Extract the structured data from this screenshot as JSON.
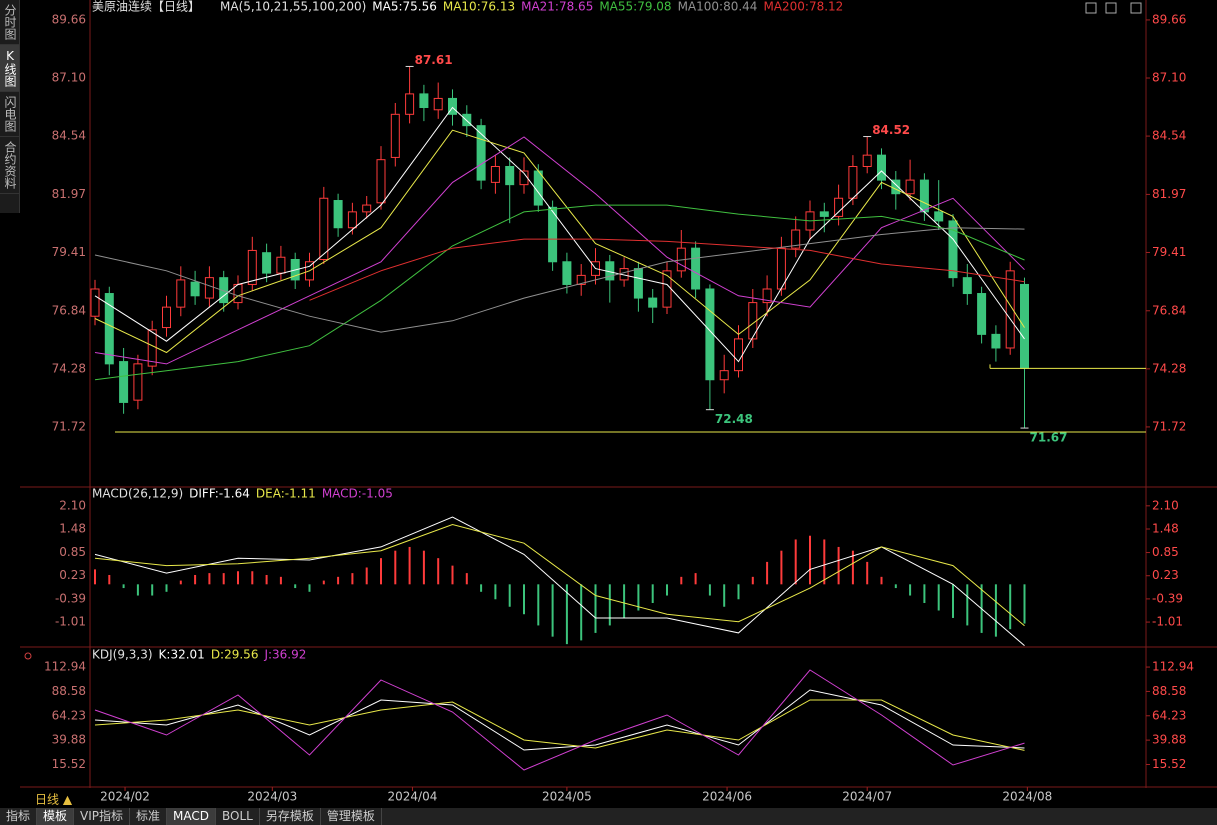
{
  "sidebar": [
    "分时图",
    "K线图",
    "闪电图",
    "合约资料"
  ],
  "sidebar_active": 1,
  "period": "日线 ▲",
  "bottom_tabs": [
    "指标",
    "模板",
    "VIP指标",
    "标准",
    "MACD",
    "BOLL",
    "另存模板",
    "管理模板"
  ],
  "chart_data": [
    {
      "type": "candlestick",
      "title": "美原油连续【日线】",
      "indicator": "MA(5,10,21,55,100,200)",
      "up_color": "#ff3b3b",
      "down_color": "#3cc47c",
      "ohlc": [
        [
          76.6,
          78.2,
          76.2,
          77.8
        ],
        [
          77.6,
          77.9,
          74.0,
          74.5
        ],
        [
          74.6,
          75.2,
          72.3,
          72.8
        ],
        [
          72.9,
          74.9,
          72.5,
          74.5
        ],
        [
          74.4,
          76.4,
          74.0,
          76.0
        ],
        [
          76.1,
          77.5,
          75.7,
          77.0
        ],
        [
          77.0,
          78.8,
          76.6,
          78.2
        ],
        [
          78.1,
          78.6,
          77.1,
          77.5
        ],
        [
          77.4,
          78.8,
          77.0,
          78.3
        ],
        [
          78.3,
          78.6,
          76.8,
          77.2
        ],
        [
          77.2,
          78.4,
          76.9,
          78.0
        ],
        [
          78.0,
          80.1,
          77.7,
          79.5
        ],
        [
          79.4,
          79.8,
          78.1,
          78.5
        ],
        [
          78.5,
          79.7,
          78.2,
          79.2
        ],
        [
          79.1,
          79.4,
          77.8,
          78.2
        ],
        [
          78.2,
          79.4,
          77.9,
          79.0
        ],
        [
          79.1,
          82.3,
          78.9,
          81.8
        ],
        [
          81.7,
          82.0,
          80.1,
          80.5
        ],
        [
          80.5,
          81.6,
          80.2,
          81.2
        ],
        [
          81.2,
          81.9,
          80.9,
          81.5
        ],
        [
          81.6,
          84.1,
          81.3,
          83.5
        ],
        [
          83.6,
          86.0,
          83.2,
          85.5
        ],
        [
          85.5,
          87.61,
          85.1,
          86.4
        ],
        [
          86.4,
          86.8,
          85.2,
          85.8
        ],
        [
          85.7,
          86.9,
          85.3,
          86.2
        ],
        [
          86.2,
          86.6,
          85.0,
          85.5
        ],
        [
          85.5,
          85.9,
          84.5,
          85.0
        ],
        [
          85.0,
          85.3,
          82.2,
          82.6
        ],
        [
          82.5,
          83.7,
          82.0,
          83.2
        ],
        [
          83.2,
          83.6,
          80.7,
          82.4
        ],
        [
          82.4,
          83.6,
          82.0,
          83.0
        ],
        [
          83.0,
          83.3,
          81.2,
          81.5
        ],
        [
          81.4,
          81.7,
          78.6,
          79.0
        ],
        [
          79.0,
          79.4,
          77.6,
          78.0
        ],
        [
          78.0,
          78.9,
          77.5,
          78.4
        ],
        [
          78.4,
          79.6,
          78.0,
          79.0
        ],
        [
          79.0,
          79.3,
          77.2,
          78.2
        ],
        [
          78.2,
          79.2,
          77.9,
          78.7
        ],
        [
          78.7,
          79.0,
          76.8,
          77.4
        ],
        [
          77.4,
          77.8,
          76.3,
          77.0
        ],
        [
          77.0,
          79.0,
          76.7,
          78.6
        ],
        [
          78.6,
          80.4,
          78.3,
          79.6
        ],
        [
          79.6,
          79.9,
          77.4,
          77.8
        ],
        [
          77.8,
          78.0,
          72.48,
          73.8
        ],
        [
          73.8,
          74.9,
          73.2,
          74.2
        ],
        [
          74.2,
          76.2,
          73.9,
          75.6
        ],
        [
          75.6,
          77.8,
          75.2,
          77.2
        ],
        [
          77.2,
          78.4,
          76.6,
          77.8
        ],
        [
          77.8,
          80.1,
          77.5,
          79.6
        ],
        [
          79.6,
          81.0,
          79.2,
          80.4
        ],
        [
          80.4,
          81.7,
          80.0,
          81.2
        ],
        [
          81.2,
          81.6,
          80.3,
          81.0
        ],
        [
          81.0,
          82.4,
          80.6,
          81.8
        ],
        [
          81.8,
          83.7,
          81.5,
          83.2
        ],
        [
          83.2,
          84.52,
          82.9,
          83.7
        ],
        [
          83.7,
          84.0,
          82.2,
          82.6
        ],
        [
          82.6,
          83.0,
          81.3,
          82.0
        ],
        [
          82.0,
          83.5,
          81.7,
          82.6
        ],
        [
          82.6,
          82.9,
          80.8,
          81.2
        ],
        [
          81.2,
          82.6,
          80.4,
          80.8
        ],
        [
          80.8,
          81.1,
          77.9,
          78.3
        ],
        [
          78.3,
          78.9,
          77.1,
          77.6
        ],
        [
          77.6,
          77.9,
          75.4,
          75.8
        ],
        [
          75.8,
          76.2,
          74.6,
          75.2
        ],
        [
          75.2,
          79.0,
          74.9,
          78.6
        ],
        [
          78.0,
          78.3,
          71.67,
          74.3
        ]
      ],
      "x": [
        0,
        5,
        10,
        15,
        20,
        25,
        30,
        35,
        40,
        45,
        50,
        55,
        60,
        65
      ],
      "series": [
        {
          "label": "MA5:75.56",
          "color": "#ffffff",
          "values": [
            77.5,
            75.5,
            78.0,
            78.8,
            81.5,
            85.8,
            82.9,
            78.7,
            78.0,
            74.6,
            80.0,
            83.0,
            80.0,
            75.6
          ]
        },
        {
          "label": "MA10:76.13",
          "color": "#e8e84a",
          "values": [
            76.5,
            75.0,
            77.5,
            78.6,
            80.5,
            84.8,
            83.8,
            79.8,
            78.4,
            75.8,
            78.2,
            82.5,
            81.0,
            76.1
          ]
        },
        {
          "label": "MA21:78.65",
          "color": "#d040d0",
          "values": [
            75.0,
            74.5,
            76.0,
            77.5,
            79.0,
            82.5,
            84.5,
            82.0,
            79.2,
            77.5,
            77.0,
            80.5,
            81.8,
            78.65
          ]
        },
        {
          "label": "MA55:79.08",
          "color": "#40c040",
          "values": [
            73.8,
            74.2,
            74.6,
            75.3,
            77.3,
            79.7,
            81.2,
            81.5,
            81.5,
            81.1,
            80.8,
            81.0,
            80.4,
            79.08
          ]
        },
        {
          "label": "MA100:80.44",
          "color": "#909090",
          "values": [
            79.3,
            78.6,
            77.5,
            76.6,
            75.9,
            76.4,
            77.4,
            78.2,
            79.0,
            79.4,
            79.8,
            80.2,
            80.5,
            80.44
          ]
        },
        {
          "label": "MA200:78.12",
          "color": "#e03030",
          "values": [
            null,
            null,
            null,
            77.3,
            78.6,
            79.6,
            80.0,
            80.0,
            79.9,
            79.7,
            79.5,
            78.9,
            78.6,
            78.12
          ]
        }
      ],
      "ylim": [
        69.16,
        90.01
      ],
      "yticks": [
        89.66,
        {
          "value": 87.1,
          "label": "87.10"
        },
        84.54,
        81.97,
        79.41,
        76.84,
        74.28,
        71.72
      ],
      "xticks": [
        {
          "value": 2.1,
          "label": "2024/02"
        },
        {
          "value": 12.4,
          "label": "2024/03"
        },
        {
          "value": 22.2,
          "label": "2024/04"
        },
        {
          "value": 33,
          "label": "2024/05"
        },
        {
          "value": 44.2,
          "label": "2024/06"
        },
        {
          "value": 54,
          "label": "2024/07"
        },
        {
          "value": 65.2,
          "label": "2024/08"
        }
      ],
      "annotations": [
        {
          "x": 22,
          "value": 87.61,
          "color": "#ff4a4a"
        },
        {
          "x": 54,
          "value": 84.52,
          "color": "#ff4a4a"
        },
        {
          "x": 43,
          "value": 72.48,
          "color": "#3cc47c"
        },
        {
          "x": 65,
          "value": 71.67,
          "color": "#3cc47c"
        }
      ]
    },
    {
      "type": "macd",
      "title": "MACD(26,12,9)",
      "labels": [
        {
          "text": "DIFF:-1.64",
          "color": "#ffffff"
        },
        {
          "text": "DEA:-1.11",
          "color": "#e8e84a"
        },
        {
          "text": "MACD:-1.05",
          "color": "#d040d0"
        }
      ],
      "x": [
        0,
        5,
        10,
        15,
        20,
        25,
        30,
        35,
        40,
        45,
        50,
        55,
        60,
        65
      ],
      "series": [
        {
          "color": "#ffffff",
          "values": [
            0.8,
            0.3,
            0.7,
            0.65,
            1.0,
            1.8,
            0.8,
            -0.9,
            -0.9,
            -1.3,
            0.4,
            1.0,
            0.0,
            -1.64
          ]
        },
        {
          "color": "#e8e84a",
          "values": [
            0.7,
            0.5,
            0.55,
            0.7,
            0.9,
            1.6,
            1.1,
            -0.3,
            -0.8,
            -1.0,
            -0.1,
            1.0,
            0.5,
            -1.11
          ]
        }
      ],
      "histogram": [
        0.4,
        0.25,
        -0.1,
        -0.3,
        -0.3,
        -0.2,
        0.1,
        0.25,
        0.3,
        0.3,
        0.35,
        0.35,
        0.25,
        0.2,
        -0.1,
        -0.2,
        0.1,
        0.2,
        0.3,
        0.45,
        0.7,
        0.9,
        1.0,
        0.9,
        0.7,
        0.5,
        0.3,
        -0.2,
        -0.4,
        -0.6,
        -0.8,
        -1.1,
        -1.4,
        -1.6,
        -1.5,
        -1.3,
        -1.1,
        -0.9,
        -0.7,
        -0.5,
        -0.3,
        0.2,
        0.3,
        -0.3,
        -0.6,
        -0.4,
        0.2,
        0.6,
        0.9,
        1.2,
        1.3,
        1.2,
        1.0,
        0.9,
        0.6,
        0.2,
        -0.1,
        -0.3,
        -0.5,
        -0.7,
        -0.9,
        -1.1,
        -1.3,
        -1.4,
        -1.2,
        -1.05
      ],
      "ylim": [
        -1.65,
        2.55
      ],
      "yticks": [
        {
          "value": 2.1,
          "label": "2.10"
        },
        1.48,
        0.85,
        0.23,
        -0.39,
        -1.01
      ]
    },
    {
      "type": "line",
      "title": "KDJ(9,3,3)",
      "labels": [
        {
          "text": "K:32.01",
          "color": "#ffffff"
        },
        {
          "text": "D:29.56",
          "color": "#e8e84a"
        },
        {
          "text": "J:36.92",
          "color": "#d040d0"
        }
      ],
      "x": [
        0,
        5,
        10,
        15,
        20,
        25,
        30,
        35,
        40,
        45,
        50,
        55,
        60,
        65
      ],
      "series": [
        {
          "color": "#ffffff",
          "values": [
            60,
            55,
            75,
            45,
            80,
            75,
            30,
            35,
            55,
            35,
            90,
            75,
            35,
            32.01
          ]
        },
        {
          "color": "#e8e84a",
          "values": [
            55,
            60,
            70,
            55,
            70,
            78,
            40,
            32,
            50,
            40,
            80,
            80,
            45,
            29.56
          ]
        },
        {
          "color": "#d040d0",
          "values": [
            70,
            45,
            85,
            25,
            100,
            68,
            10,
            40,
            65,
            25,
            110,
            65,
            15,
            36.92
          ]
        }
      ],
      "ylim": [
        -5,
        130
      ],
      "yticks": [
        112.94,
        88.58,
        64.23,
        39.88,
        15.52
      ]
    }
  ]
}
